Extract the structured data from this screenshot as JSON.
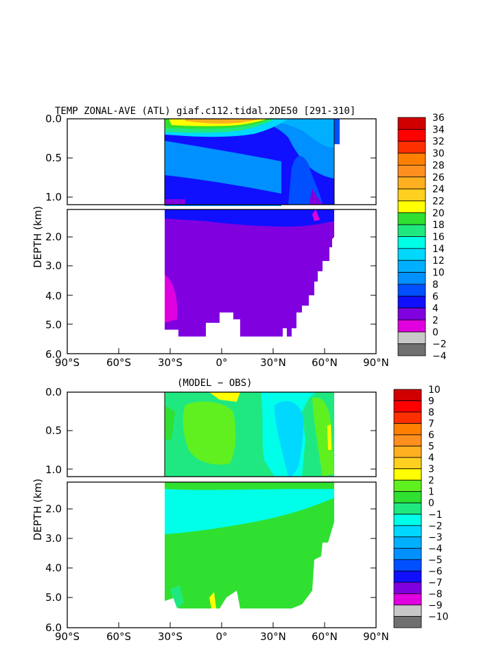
{
  "colors": {
    "neg10": "#707070",
    "neg9": "#c8c8c8",
    "neg8": "#e000e0",
    "neg7": "#8000e0",
    "neg6": "#1010ff",
    "neg5": "#0050ff",
    "neg4": "#0090ff",
    "neg3": "#00b0ff",
    "neg2": "#00d8ff",
    "neg1": "#00ffe8",
    "z0": "#20e880",
    "p1": "#30e030",
    "p2": "#60f020",
    "p3": "#ffff00",
    "p4": "#ffd020",
    "p5": "#ffb020",
    "p6": "#ff9020",
    "p7": "#ff8000",
    "p8": "#ff3000",
    "p9": "#ff0000",
    "p10": "#d00000"
  },
  "chart_data": [
    {
      "type": "heatmap",
      "title": "TEMP ZONAL-AVE (ATL) giaf.c112.tidal.2DE50 [291-310]",
      "xlabel": "",
      "ylabel": "DEPTH (km)",
      "x_ticks": [
        "90°S",
        "60°S",
        "30°S",
        "0°",
        "30°N",
        "60°N",
        "90°N"
      ],
      "y_ticks_upper": [
        "0.0",
        "0.5",
        "1.0"
      ],
      "y_ticks_lower": [
        "2.0",
        "3.0",
        "4.0",
        "5.0",
        "6.0"
      ],
      "xlim": [
        -90,
        90
      ],
      "ylim_km": [
        0,
        6
      ],
      "colorbar_levels": [
        "36",
        "34",
        "32",
        "30",
        "28",
        "26",
        "24",
        "22",
        "20",
        "18",
        "16",
        "14",
        "12",
        "10",
        "8",
        "6",
        "4",
        "2",
        "0",
        "−2",
        "−4"
      ],
      "colorbar_colors": [
        "#d00000",
        "#ff0000",
        "#ff3000",
        "#ff8000",
        "#ff9020",
        "#ffb020",
        "#ffd020",
        "#ffff00",
        "#30e030",
        "#20e880",
        "#00ffe8",
        "#00d8ff",
        "#00b0ff",
        "#0090ff",
        "#0050ff",
        "#1010ff",
        "#8000e0",
        "#e000e0",
        "#c8c8c8",
        "#707070"
      ]
    },
    {
      "type": "heatmap",
      "title": "(MODEL − OBS)",
      "xlabel": "",
      "ylabel": "DEPTH (km)",
      "x_ticks": [
        "90°S",
        "60°S",
        "30°S",
        "0°",
        "30°N",
        "60°N",
        "90°N"
      ],
      "y_ticks_upper": [
        "0.0",
        "0.5",
        "1.0"
      ],
      "y_ticks_lower": [
        "2.0",
        "3.0",
        "4.0",
        "5.0",
        "6.0"
      ],
      "xlim": [
        -90,
        90
      ],
      "ylim_km": [
        0,
        6
      ],
      "colorbar_levels": [
        "10",
        "9",
        "8",
        "7",
        "6",
        "5",
        "4",
        "3",
        "2",
        "1",
        "0",
        "−1",
        "−2",
        "−3",
        "−4",
        "−5",
        "−6",
        "−7",
        "−8",
        "−9",
        "−10"
      ],
      "colorbar_colors": [
        "#d00000",
        "#ff0000",
        "#ff3000",
        "#ff8000",
        "#ff9020",
        "#ffb020",
        "#ffd020",
        "#ffff00",
        "#60f020",
        "#30e030",
        "#20e880",
        "#00ffe8",
        "#00d8ff",
        "#00b0ff",
        "#0090ff",
        "#0050ff",
        "#1010ff",
        "#8000e0",
        "#e000e0",
        "#c8c8c8",
        "#707070"
      ]
    }
  ]
}
